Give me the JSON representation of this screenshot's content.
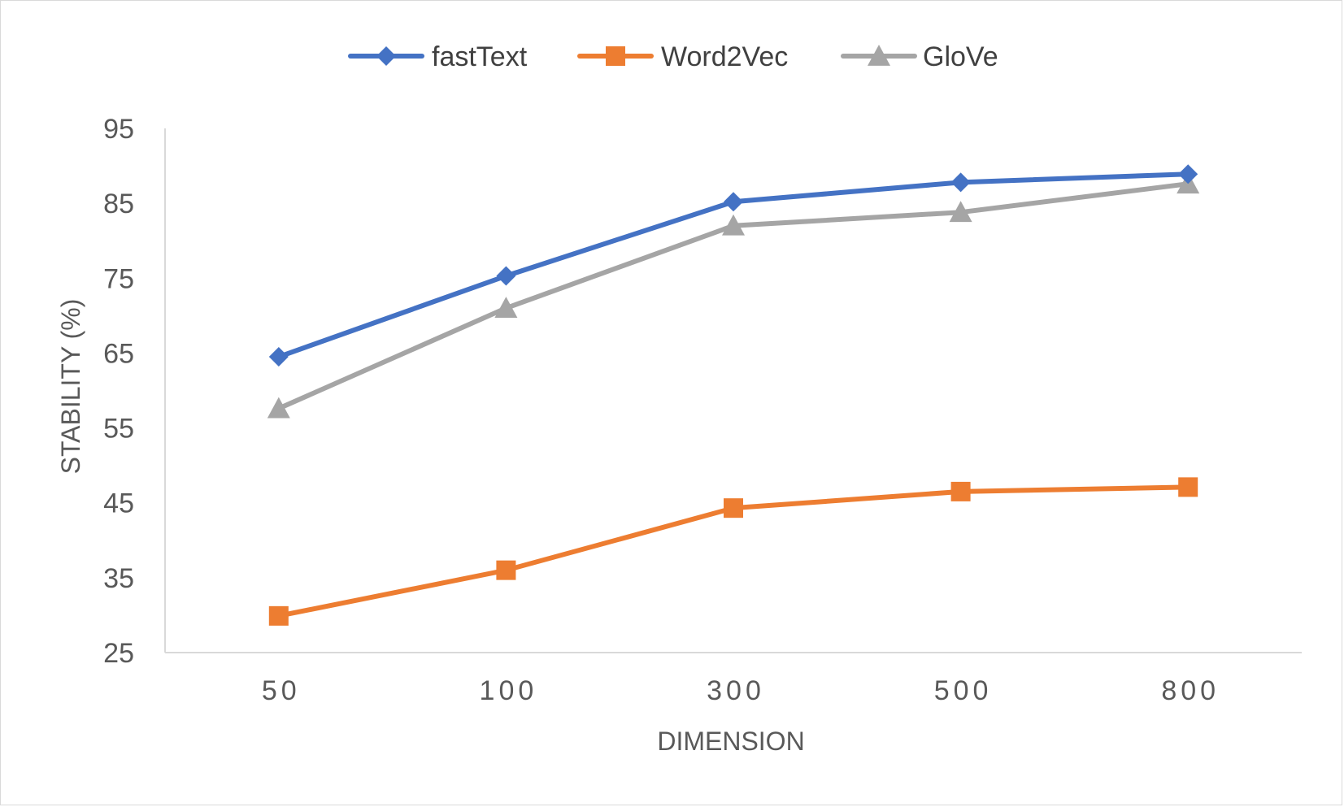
{
  "chart_data": {
    "type": "line",
    "categories": [
      "50",
      "100",
      "300",
      "500",
      "800"
    ],
    "series": [
      {
        "name": "fastText",
        "values": [
          64.5,
          75.3,
          85.2,
          87.8,
          88.9
        ],
        "color": "#4472c4",
        "marker": "diamond"
      },
      {
        "name": "Word2Vec",
        "values": [
          29.9,
          36.0,
          44.3,
          46.5,
          47.1
        ],
        "color": "#ed7d31",
        "marker": "square"
      },
      {
        "name": "GloVe",
        "values": [
          57.6,
          71.0,
          82.0,
          83.8,
          87.6
        ],
        "color": "#a5a5a5",
        "marker": "triangle"
      }
    ],
    "xlabel": "DIMENSION",
    "ylabel": "STABILITY (%)",
    "ylim": [
      25,
      95
    ],
    "yticks": [
      "95",
      "85",
      "75",
      "65",
      "55",
      "45",
      "35",
      "25"
    ],
    "grid": false,
    "legend_position": "top"
  }
}
